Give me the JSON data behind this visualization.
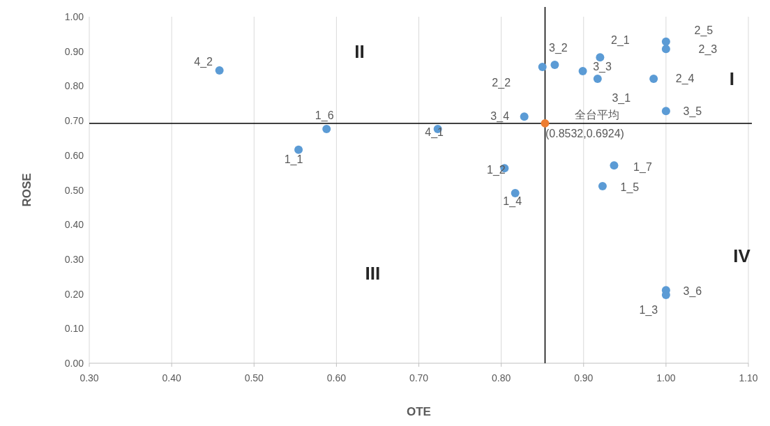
{
  "chart_data": {
    "type": "scatter",
    "xlabel": "OTE",
    "ylabel": "ROSE",
    "xlim": [
      0.3,
      1.1
    ],
    "ylim": [
      0,
      1
    ],
    "xticks": [
      {
        "value": 0.3,
        "label": "0.30"
      },
      {
        "value": 0.4,
        "label": "0.40"
      },
      {
        "value": 0.5,
        "label": "0.50"
      },
      {
        "value": 0.6,
        "label": "0.60"
      },
      {
        "value": 0.7,
        "label": "0.70"
      },
      {
        "value": 0.8,
        "label": "0.80"
      },
      {
        "value": 0.9,
        "label": "0.90"
      },
      {
        "value": 1.0,
        "label": "1.00"
      },
      {
        "value": 1.1,
        "label": "1.10"
      }
    ],
    "yticks": [
      {
        "value": 0,
        "label": "0.00"
      },
      {
        "value": 0.1,
        "label": "0.10"
      },
      {
        "value": 0.2,
        "label": "0.20"
      },
      {
        "value": 0.3,
        "label": "0.30"
      },
      {
        "value": 0.4,
        "label": "0.40"
      },
      {
        "value": 0.5,
        "label": "0.50"
      },
      {
        "value": 0.6,
        "label": "0.60"
      },
      {
        "value": 0.7,
        "label": "0.70"
      },
      {
        "value": 0.8,
        "label": "0.80"
      },
      {
        "value": 0.9,
        "label": "0.90"
      },
      {
        "value": 1.0,
        "label": "1.00"
      }
    ],
    "grid": "x",
    "marker": "circle",
    "legend": false,
    "series": [
      {
        "name": "4_2",
        "color": "#5b9bd5",
        "x": [
          0.458
        ],
        "values": [
          0.845
        ]
      },
      {
        "name": "1_6",
        "color": "#5b9bd5",
        "x": [
          0.588
        ],
        "values": [
          0.676
        ]
      },
      {
        "name": "1_1",
        "color": "#5b9bd5",
        "x": [
          0.554
        ],
        "values": [
          0.616
        ]
      },
      {
        "name": "4_1",
        "color": "#5b9bd5",
        "x": [
          0.723
        ],
        "values": [
          0.676
        ]
      },
      {
        "name": "1_2",
        "color": "#5b9bd5",
        "x": [
          0.804
        ],
        "values": [
          0.563
        ]
      },
      {
        "name": "1_4",
        "color": "#5b9bd5",
        "x": [
          0.817
        ],
        "values": [
          0.491
        ]
      },
      {
        "name": "3_4",
        "color": "#5b9bd5",
        "x": [
          0.828
        ],
        "values": [
          0.712
        ]
      },
      {
        "name": "2_2",
        "color": "#5b9bd5",
        "x": [
          0.85
        ],
        "values": [
          0.855
        ]
      },
      {
        "name": "3_2",
        "color": "#5b9bd5",
        "x": [
          0.865
        ],
        "values": [
          0.861
        ]
      },
      {
        "name": "3_3",
        "color": "#5b9bd5",
        "x": [
          0.899
        ],
        "values": [
          0.843
        ]
      },
      {
        "name": "2_1",
        "color": "#5b9bd5",
        "x": [
          0.92
        ],
        "values": [
          0.883
        ]
      },
      {
        "name": "3_1",
        "color": "#5b9bd5",
        "x": [
          0.917
        ],
        "values": [
          0.821
        ]
      },
      {
        "name": "2_4",
        "color": "#5b9bd5",
        "x": [
          0.985
        ],
        "values": [
          0.821
        ]
      },
      {
        "name": "2_5",
        "color": "#5b9bd5",
        "x": [
          1.0
        ],
        "values": [
          0.928
        ]
      },
      {
        "name": "2_3",
        "color": "#5b9bd5",
        "x": [
          1.0
        ],
        "values": [
          0.907
        ]
      },
      {
        "name": "3_5",
        "color": "#5b9bd5",
        "x": [
          1.0
        ],
        "values": [
          0.728
        ]
      },
      {
        "name": "1_7",
        "color": "#5b9bd5",
        "x": [
          0.937
        ],
        "values": [
          0.571
        ]
      },
      {
        "name": "1_5",
        "color": "#5b9bd5",
        "x": [
          0.923
        ],
        "values": [
          0.511
        ]
      },
      {
        "name": "3_6",
        "color": "#5b9bd5",
        "x": [
          1.0
        ],
        "values": [
          0.211
        ]
      },
      {
        "name": "1_3",
        "color": "#5b9bd5",
        "x": [
          1.0
        ],
        "values": [
          0.197
        ]
      },
      {
        "name": "全台平均",
        "color": "#ed7d31",
        "x": [
          0.8532
        ],
        "values": [
          0.6924
        ]
      }
    ],
    "ref_lines": [
      {
        "axis": "x",
        "value": 0.8532,
        "color": "#000000"
      },
      {
        "axis": "y",
        "value": 0.6924,
        "color": "#000000"
      }
    ],
    "annotations": [
      "I",
      "II",
      "III",
      "IV",
      {
        "text": "(0.8532,0.6924)",
        "x": 0.8532,
        "y": 0.6924
      }
    ]
  }
}
